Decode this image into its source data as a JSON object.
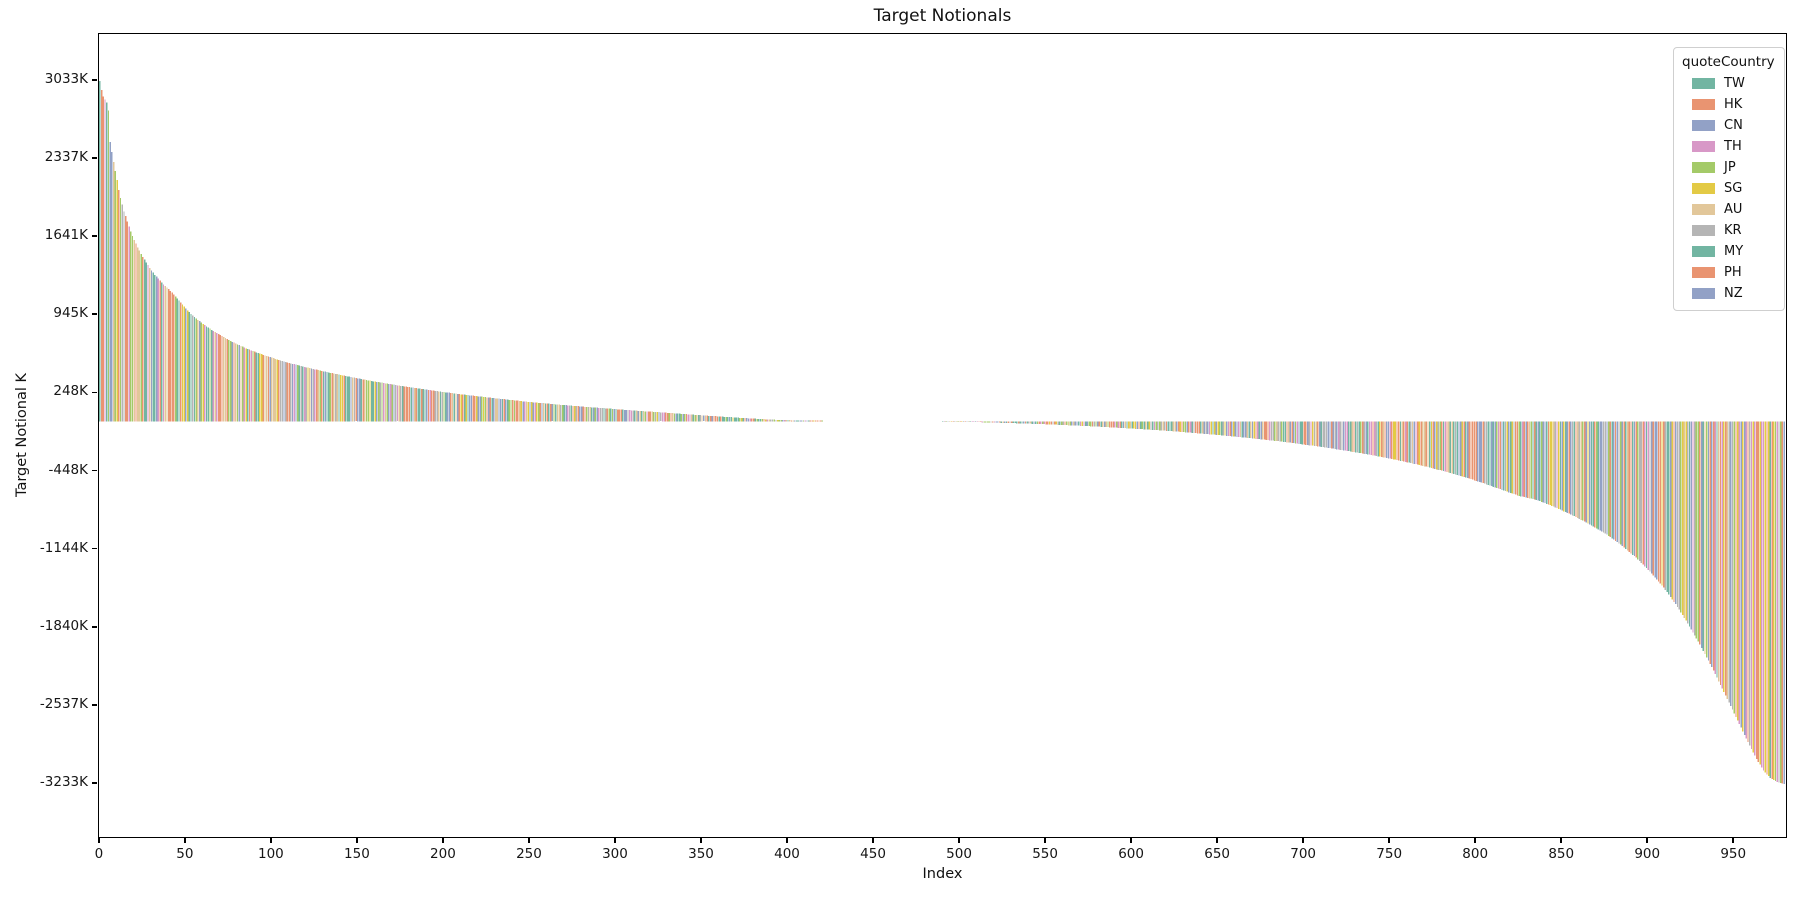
{
  "figure": {
    "title": "Target Notionals",
    "xlabel": "Index",
    "ylabel": "Target Notional K"
  },
  "legend": {
    "title": "quoteCountry"
  },
  "chart_data": {
    "type": "bar",
    "title": "Target Notionals",
    "xlabel": "Index",
    "ylabel": "Target Notional K",
    "legend_title": "quoteCountry",
    "value_unit": "K",
    "n_bars": 980,
    "max_value_k": 3033,
    "min_value_k": -3233,
    "ylim": [
      -3695,
      3450
    ],
    "x_ticks": [
      0,
      50,
      100,
      150,
      200,
      250,
      300,
      350,
      400,
      450,
      500,
      550,
      600,
      650,
      700,
      750,
      800,
      850,
      900,
      950
    ],
    "y_ticks": [
      {
        "label": "3033K",
        "value": 3033
      },
      {
        "label": "2337K",
        "value": 2337
      },
      {
        "label": "1641K",
        "value": 1641
      },
      {
        "label": "945K",
        "value": 945
      },
      {
        "label": "248K",
        "value": 248
      },
      {
        "label": "-448K",
        "value": -448
      },
      {
        "label": "-1144K",
        "value": -1144
      },
      {
        "label": "-1840K",
        "value": -1840
      },
      {
        "label": "-2537K",
        "value": -2537
      },
      {
        "label": "-3233K",
        "value": -3233
      }
    ],
    "grid": false,
    "legend_position": "upper right",
    "countries": [
      "TW",
      "HK",
      "CN",
      "TH",
      "JP",
      "SG",
      "AU",
      "KR",
      "MY",
      "PH",
      "NZ"
    ],
    "colors": {
      "TW": "#72b5a2",
      "HK": "#e99471",
      "CN": "#92a1c6",
      "TH": "#d898c7",
      "JP": "#a4ca68",
      "SG": "#e3ca45",
      "AU": "#e2c79a",
      "KR": "#b5b5b5",
      "MY": "#72b5a2",
      "PH": "#e99471",
      "NZ": "#92a1c6"
    },
    "leading_bar_countries": [
      "TW",
      "HK",
      "HK",
      "TH",
      "MY",
      "JP",
      "CN",
      "CN"
    ],
    "trailing_bar_countries": [
      "HK",
      "CN"
    ],
    "sorted": "descending",
    "envelope_points": [
      [
        0,
        3033
      ],
      [
        1,
        2950
      ],
      [
        2,
        2895
      ],
      [
        3,
        2865
      ],
      [
        4,
        2840
      ],
      [
        5,
        2770
      ],
      [
        6,
        2490
      ],
      [
        7,
        2400
      ],
      [
        8,
        2310
      ],
      [
        9,
        2230
      ],
      [
        10,
        2150
      ],
      [
        11,
        2060
      ],
      [
        12,
        1990
      ],
      [
        13,
        1930
      ],
      [
        14,
        1870
      ],
      [
        15,
        1830
      ],
      [
        16,
        1780
      ],
      [
        17,
        1735
      ],
      [
        18,
        1690
      ],
      [
        19,
        1650
      ],
      [
        20,
        1615
      ],
      [
        22,
        1550
      ],
      [
        24,
        1490
      ],
      [
        26,
        1440
      ],
      [
        28,
        1390
      ],
      [
        30,
        1345
      ],
      [
        32,
        1305
      ],
      [
        34,
        1270
      ],
      [
        36,
        1235
      ],
      [
        38,
        1205
      ],
      [
        40,
        1180
      ],
      [
        42,
        1145
      ],
      [
        44,
        1110
      ],
      [
        46,
        1075
      ],
      [
        48,
        1040
      ],
      [
        50,
        1005
      ],
      [
        53,
        955
      ],
      [
        56,
        915
      ],
      [
        59,
        880
      ],
      [
        62,
        845
      ],
      [
        65,
        815
      ],
      [
        68,
        785
      ],
      [
        72,
        750
      ],
      [
        76,
        715
      ],
      [
        80,
        685
      ],
      [
        85,
        650
      ],
      [
        90,
        620
      ],
      [
        95,
        592
      ],
      [
        100,
        566
      ],
      [
        106,
        538
      ],
      [
        112,
        512
      ],
      [
        118,
        488
      ],
      [
        124,
        466
      ],
      [
        130,
        445
      ],
      [
        137,
        422
      ],
      [
        144,
        400
      ],
      [
        151,
        379
      ],
      [
        158,
        359
      ],
      [
        166,
        338
      ],
      [
        174,
        318
      ],
      [
        182,
        299
      ],
      [
        190,
        281
      ],
      [
        199,
        262
      ],
      [
        208,
        244
      ],
      [
        218,
        226
      ],
      [
        228,
        208
      ],
      [
        238,
        191
      ],
      [
        248,
        175
      ],
      [
        259,
        159
      ],
      [
        270,
        144
      ],
      [
        282,
        129
      ],
      [
        294,
        115
      ],
      [
        306,
        101
      ],
      [
        318,
        88
      ],
      [
        330,
        75
      ],
      [
        342,
        62
      ],
      [
        354,
        49
      ],
      [
        365,
        38
      ],
      [
        375,
        28
      ],
      [
        385,
        19
      ],
      [
        395,
        12
      ],
      [
        405,
        7
      ],
      [
        415,
        3.5
      ],
      [
        425,
        1.5
      ],
      [
        440,
        0.5
      ],
      [
        460,
        -0.5
      ],
      [
        480,
        -1.5
      ],
      [
        495,
        -3
      ],
      [
        505,
        -6
      ],
      [
        515,
        -10
      ],
      [
        525,
        -14
      ],
      [
        535,
        -19
      ],
      [
        545,
        -24
      ],
      [
        555,
        -30
      ],
      [
        565,
        -37
      ],
      [
        575,
        -44
      ],
      [
        585,
        -52
      ],
      [
        595,
        -61
      ],
      [
        605,
        -70
      ],
      [
        615,
        -80
      ],
      [
        625,
        -91
      ],
      [
        635,
        -103
      ],
      [
        645,
        -116
      ],
      [
        655,
        -130
      ],
      [
        665,
        -145
      ],
      [
        675,
        -161
      ],
      [
        685,
        -178
      ],
      [
        695,
        -197
      ],
      [
        705,
        -218
      ],
      [
        715,
        -240
      ],
      [
        725,
        -264
      ],
      [
        735,
        -290
      ],
      [
        745,
        -318
      ],
      [
        755,
        -349
      ],
      [
        765,
        -383
      ],
      [
        775,
        -420
      ],
      [
        785,
        -461
      ],
      [
        795,
        -506
      ],
      [
        805,
        -556
      ],
      [
        815,
        -611
      ],
      [
        825,
        -665
      ],
      [
        835,
        -700
      ],
      [
        845,
        -760
      ],
      [
        855,
        -830
      ],
      [
        865,
        -910
      ],
      [
        875,
        -1000
      ],
      [
        884,
        -1100
      ],
      [
        893,
        -1215
      ],
      [
        901,
        -1340
      ],
      [
        909,
        -1480
      ],
      [
        916,
        -1630
      ],
      [
        923,
        -1800
      ],
      [
        930,
        -1990
      ],
      [
        937,
        -2190
      ],
      [
        943,
        -2380
      ],
      [
        949,
        -2570
      ],
      [
        954,
        -2730
      ],
      [
        959,
        -2890
      ],
      [
        963,
        -3010
      ],
      [
        967,
        -3110
      ],
      [
        971,
        -3180
      ],
      [
        975,
        -3215
      ],
      [
        979,
        -3233
      ]
    ]
  }
}
